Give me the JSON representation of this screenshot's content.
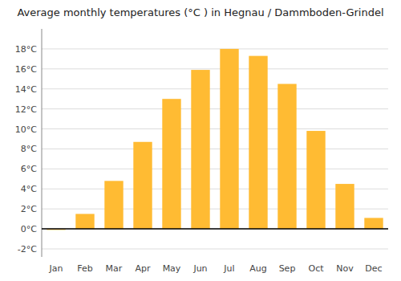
{
  "chart_data": {
    "type": "bar",
    "title": "Average monthly temperatures (°C ) in Hegnau / Dammboden-Grindel",
    "categories": [
      "Jan",
      "Feb",
      "Mar",
      "Apr",
      "May",
      "Jun",
      "Jul",
      "Aug",
      "Sep",
      "Oct",
      "Nov",
      "Dec"
    ],
    "values": [
      -0.1,
      1.5,
      4.8,
      8.7,
      13.0,
      15.9,
      18.0,
      17.3,
      14.5,
      9.8,
      4.5,
      1.1
    ],
    "color": "#FFBB33",
    "ylim": [
      -2.8,
      20.0
    ],
    "yticks": [
      {
        "value": -2,
        "label": "-2°C"
      },
      {
        "value": 0,
        "label": "0°C"
      },
      {
        "value": 2,
        "label": "2°C"
      },
      {
        "value": 4,
        "label": "4°C"
      },
      {
        "value": 6,
        "label": "6°C"
      },
      {
        "value": 8,
        "label": "8°C"
      },
      {
        "value": 10,
        "label": "10°C"
      },
      {
        "value": 12,
        "label": "12°C"
      },
      {
        "value": 14,
        "label": "14°C"
      },
      {
        "value": 16,
        "label": "16°C"
      },
      {
        "value": 18,
        "label": "18°C"
      }
    ],
    "grid": true
  }
}
